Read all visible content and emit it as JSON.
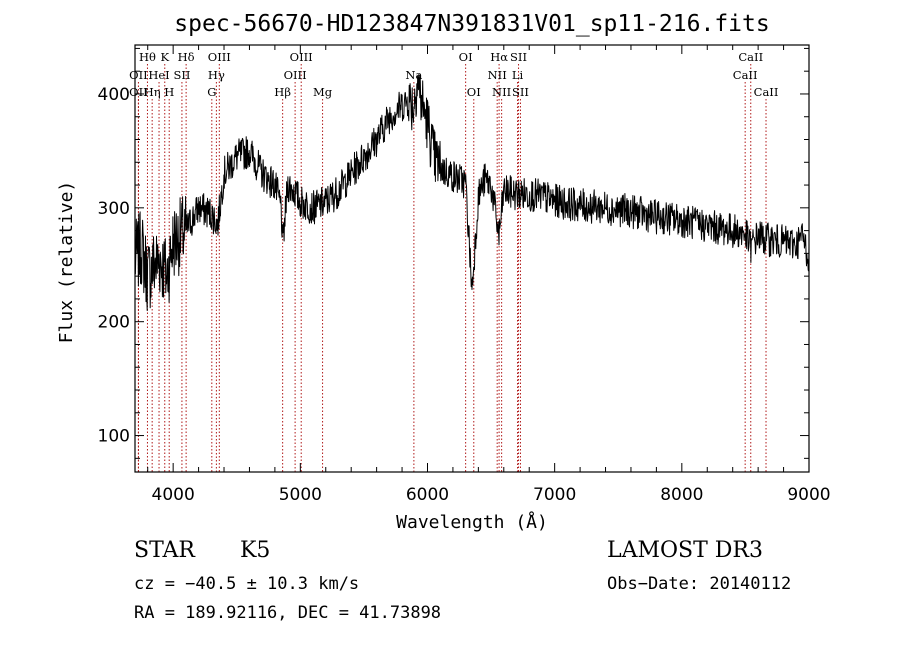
{
  "chart_data": {
    "type": "line",
    "title": "spec-56670-HD123847N391831V01_sp11-216.fits",
    "xlabel": "Wavelength (Å)",
    "ylabel": "Flux (relative)",
    "xlim": [
      3700,
      9000
    ],
    "ylim": [
      68,
      443
    ],
    "xticks": [
      4000,
      5000,
      6000,
      7000,
      8000,
      9000
    ],
    "yticks": [
      100,
      200,
      300,
      400
    ],
    "grid": false,
    "series": [
      {
        "line_color": "#000000",
        "x": [
          3700,
          3750,
          3800,
          3850,
          3900,
          3950,
          4000,
          4100,
          4200,
          4300,
          4350,
          4400,
          4500,
          4600,
          4700,
          4800,
          4850,
          4861,
          4900,
          4950,
          5000,
          5100,
          5200,
          5300,
          5400,
          5500,
          5600,
          5700,
          5800,
          5850,
          5893,
          5920,
          5950,
          6000,
          6050,
          6100,
          6200,
          6300,
          6350,
          6400,
          6450,
          6500,
          6563,
          6600,
          6700,
          6800,
          6900,
          7000,
          7200,
          7400,
          7600,
          7800,
          8000,
          8200,
          8400,
          8500,
          8542,
          8600,
          8662,
          8700,
          8800,
          8900,
          8950,
          9000
        ],
        "values": [
          255,
          265,
          240,
          250,
          255,
          240,
          270,
          280,
          300,
          295,
          285,
          330,
          345,
          350,
          330,
          320,
          300,
          265,
          320,
          315,
          305,
          300,
          305,
          315,
          330,
          345,
          360,
          380,
          390,
          395,
          390,
          415,
          395,
          375,
          345,
          335,
          328,
          322,
          228,
          310,
          325,
          320,
          275,
          315,
          312,
          312,
          310,
          306,
          302,
          300,
          297,
          292,
          289,
          284,
          280,
          277,
          266,
          276,
          272,
          272,
          270,
          268,
          275,
          255
        ]
      }
    ],
    "line_markers": [
      {
        "label": "Hθ",
        "x": 3798,
        "row": 0
      },
      {
        "label": "K",
        "x": 3934,
        "row": 0
      },
      {
        "label": "Hδ",
        "x": 4102,
        "row": 0
      },
      {
        "label": "OII",
        "x": 3727,
        "row": 1
      },
      {
        "label": "HeI",
        "x": 3889,
        "row": 1
      },
      {
        "label": "SII",
        "x": 4069,
        "row": 1
      },
      {
        "label": "OII",
        "x": 3727,
        "row": 2
      },
      {
        "label": "Hη",
        "x": 3835,
        "row": 2
      },
      {
        "label": "H",
        "x": 3969,
        "row": 2
      },
      {
        "label": "OIII",
        "x": 4363,
        "row": 0
      },
      {
        "label": "Hγ",
        "x": 4340,
        "row": 1
      },
      {
        "label": "G",
        "x": 4304,
        "row": 2
      },
      {
        "label": "OIII",
        "x": 5007,
        "row": 0
      },
      {
        "label": "OIII",
        "x": 4959,
        "row": 1
      },
      {
        "label": "Hβ",
        "x": 4861,
        "row": 2
      },
      {
        "label": "Mg",
        "x": 5175,
        "row": 2
      },
      {
        "label": "Na",
        "x": 5893,
        "row": 1
      },
      {
        "label": "OI",
        "x": 6300,
        "row": 0
      },
      {
        "label": "OI",
        "x": 6364,
        "row": 2
      },
      {
        "label": "Hα",
        "x": 6563,
        "row": 0
      },
      {
        "label": "SII",
        "x": 6716,
        "row": 0
      },
      {
        "label": "NII",
        "x": 6548,
        "row": 1
      },
      {
        "label": "Li",
        "x": 6708,
        "row": 1
      },
      {
        "label": "NII",
        "x": 6583,
        "row": 2
      },
      {
        "label": "SII",
        "x": 6731,
        "row": 2
      },
      {
        "label": "CaII",
        "x": 8542,
        "row": 0
      },
      {
        "label": "CaII",
        "x": 8498,
        "row": 1
      },
      {
        "label": "CaII",
        "x": 8662,
        "row": 2
      }
    ]
  },
  "footer": {
    "class_label": "STAR",
    "subclass": "K5",
    "survey": "LAMOST DR3",
    "redshift": "cz = −40.5 ± 10.3 km/s",
    "obs_date": "Obs−Date: 20140112",
    "coords": "RA = 189.92116, DEC =  41.73898"
  }
}
